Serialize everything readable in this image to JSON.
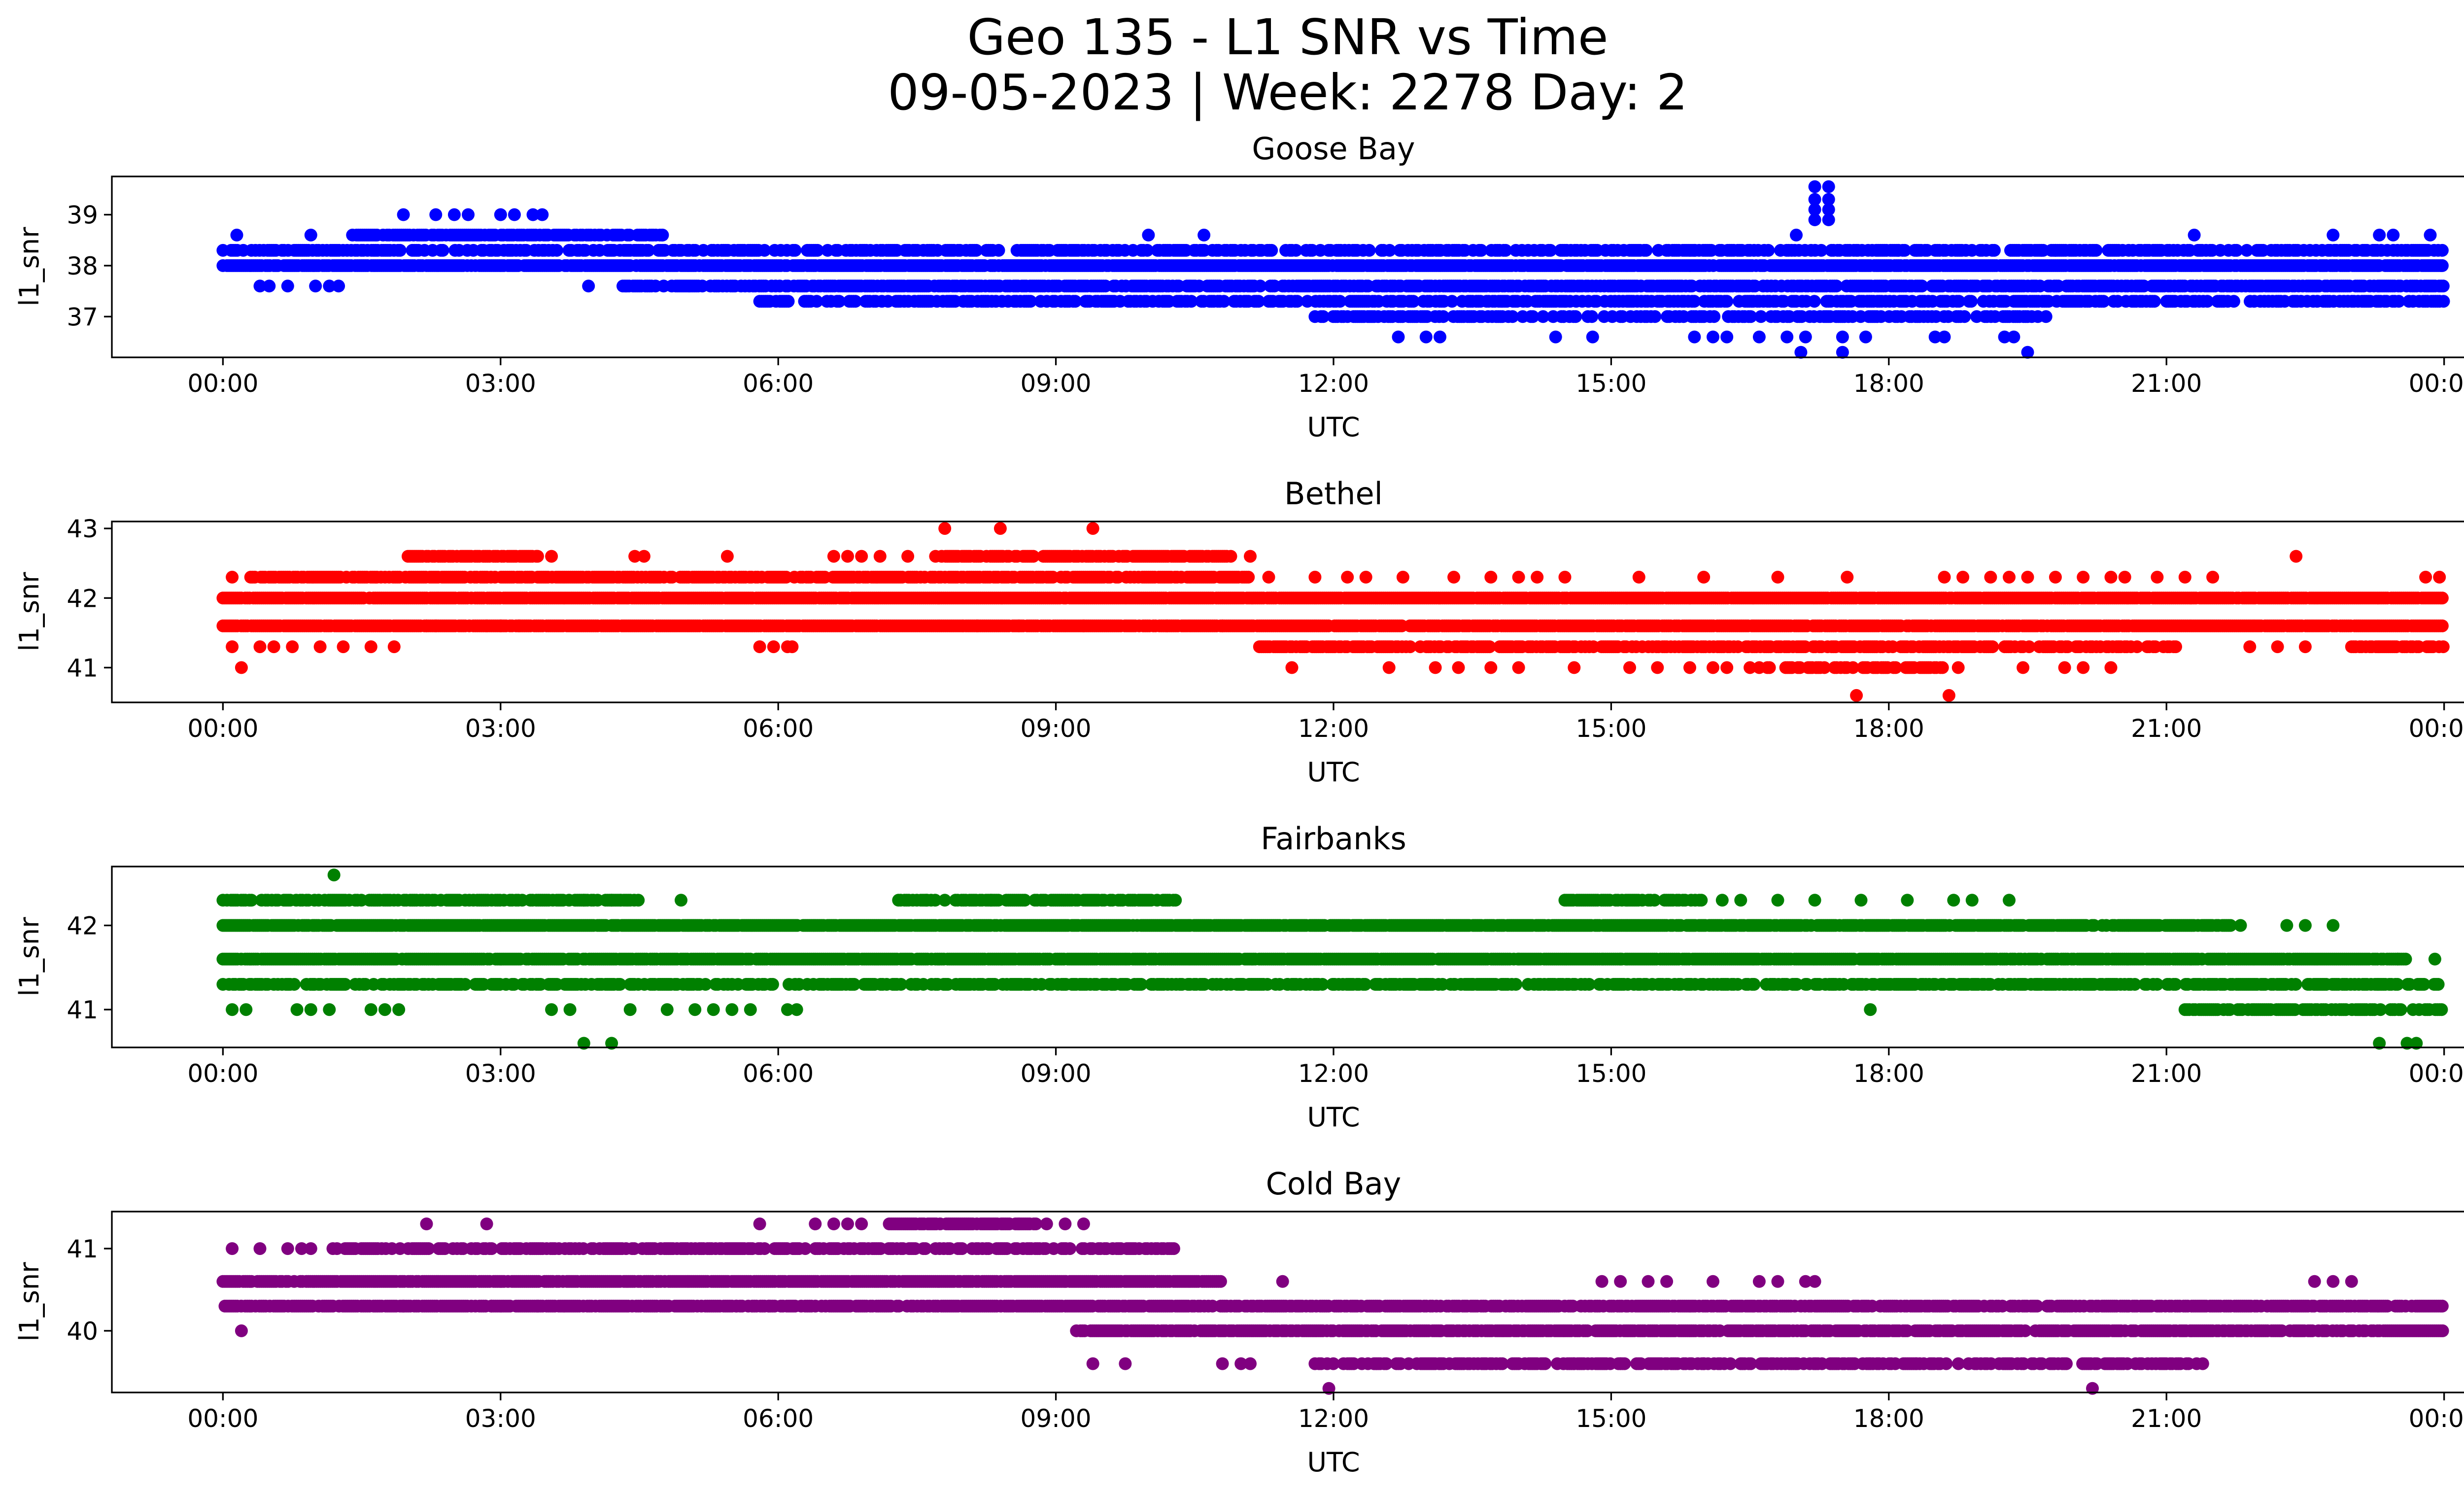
{
  "figure": {
    "title_line1": "Geo 135 - L1 SNR vs Time",
    "title_line2": "09-05-2023 | Week: 2278 Day: 2"
  },
  "chart_data": [
    {
      "type": "scatter",
      "title": "Goose Bay",
      "xlabel": "UTC",
      "ylabel": "l1_snr",
      "color": "#0000ff",
      "x_unit": "hours UTC (0-24)",
      "xticks": [
        "00:00",
        "03:00",
        "06:00",
        "09:00",
        "12:00",
        "15:00",
        "18:00",
        "21:00",
        "00:00"
      ],
      "xlim": [
        -1.2,
        25.2
      ],
      "ylim": [
        36.2,
        39.75
      ],
      "yticks": [
        37,
        38,
        39
      ],
      "bands": [
        {
          "y": 38.0,
          "from": 0.0,
          "to": 24.0,
          "density": 0.9
        },
        {
          "y": 38.3,
          "from": 0.0,
          "to": 24.0,
          "density": 0.55
        },
        {
          "y": 38.6,
          "from": 1.4,
          "to": 4.8,
          "density": 0.7
        },
        {
          "y": 37.6,
          "from": 4.3,
          "to": 24.0,
          "density": 0.7
        },
        {
          "y": 37.3,
          "from": 5.8,
          "to": 24.0,
          "density": 0.55
        },
        {
          "y": 37.0,
          "from": 11.8,
          "to": 19.7,
          "density": 0.5
        }
      ],
      "points": [
        [
          1.95,
          39.0
        ],
        [
          2.3,
          39.0
        ],
        [
          2.5,
          39.0
        ],
        [
          2.65,
          39.0
        ],
        [
          3.0,
          39.0
        ],
        [
          3.15,
          39.0
        ],
        [
          3.35,
          39.0
        ],
        [
          3.45,
          39.0
        ],
        [
          0.15,
          38.6
        ],
        [
          0.95,
          38.6
        ],
        [
          4.65,
          38.6
        ],
        [
          4.75,
          38.6
        ],
        [
          10.0,
          38.6
        ],
        [
          10.6,
          38.6
        ],
        [
          21.3,
          38.6
        ],
        [
          22.8,
          38.6
        ],
        [
          23.3,
          38.6
        ],
        [
          23.45,
          38.6
        ],
        [
          23.85,
          38.6
        ],
        [
          0.4,
          37.6
        ],
        [
          0.5,
          37.6
        ],
        [
          0.7,
          37.6
        ],
        [
          1.0,
          37.6
        ],
        [
          1.15,
          37.6
        ],
        [
          1.25,
          37.6
        ],
        [
          3.95,
          37.6
        ],
        [
          12.7,
          36.6
        ],
        [
          13.0,
          36.6
        ],
        [
          13.15,
          36.6
        ],
        [
          14.4,
          36.6
        ],
        [
          14.8,
          36.6
        ],
        [
          15.9,
          36.6
        ],
        [
          16.1,
          36.6
        ],
        [
          16.25,
          36.6
        ],
        [
          16.6,
          36.6
        ],
        [
          16.9,
          36.6
        ],
        [
          17.1,
          36.6
        ],
        [
          17.5,
          36.6
        ],
        [
          17.75,
          36.6
        ],
        [
          18.5,
          36.6
        ],
        [
          18.6,
          36.6
        ],
        [
          19.25,
          36.6
        ],
        [
          19.35,
          36.6
        ],
        [
          17.05,
          36.3
        ],
        [
          17.5,
          36.3
        ],
        [
          19.5,
          36.3
        ],
        [
          17.2,
          38.9
        ],
        [
          17.2,
          39.1
        ],
        [
          17.2,
          39.3
        ],
        [
          17.2,
          39.55
        ],
        [
          17.35,
          38.9
        ],
        [
          17.35,
          39.1
        ],
        [
          17.35,
          39.3
        ],
        [
          17.35,
          39.55
        ],
        [
          17.0,
          38.6
        ],
        [
          16.95,
          38.3
        ],
        [
          17.65,
          38.3
        ],
        [
          18.1,
          38.3
        ],
        [
          18.3,
          38.3
        ],
        [
          19.65,
          38.3
        ],
        [
          19.8,
          38.3
        ],
        [
          20.2,
          38.3
        ],
        [
          15.2,
          38.3
        ],
        [
          15.9,
          38.3
        ]
      ]
    },
    {
      "type": "scatter",
      "title": "Bethel",
      "xlabel": "UTC",
      "ylabel": "l1_snr",
      "color": "#ff0000",
      "x_unit": "hours UTC (0-24)",
      "xticks": [
        "00:00",
        "03:00",
        "06:00",
        "09:00",
        "12:00",
        "15:00",
        "18:00",
        "21:00",
        "00:00"
      ],
      "xlim": [
        -1.2,
        25.2
      ],
      "ylim": [
        40.5,
        43.1
      ],
      "yticks": [
        41,
        42,
        43
      ],
      "bands": [
        {
          "y": 42.0,
          "from": 0.0,
          "to": 24.0,
          "density": 0.95
        },
        {
          "y": 42.3,
          "from": 0.3,
          "to": 11.1,
          "density": 0.75
        },
        {
          "y": 41.6,
          "from": 0.0,
          "to": 24.0,
          "density": 0.9
        },
        {
          "y": 41.3,
          "from": 11.2,
          "to": 21.1,
          "density": 0.65
        },
        {
          "y": 42.6,
          "from": 2.0,
          "to": 3.4,
          "density": 0.8
        },
        {
          "y": 42.6,
          "from": 7.7,
          "to": 10.9,
          "density": 0.75
        },
        {
          "y": 41.3,
          "from": 23.0,
          "to": 24.0,
          "density": 0.6
        },
        {
          "y": 41.0,
          "from": 16.6,
          "to": 18.6,
          "density": 0.55
        }
      ],
      "points": [
        [
          0.1,
          42.3
        ],
        [
          0.1,
          41.3
        ],
        [
          0.2,
          41.0
        ],
        [
          0.4,
          41.3
        ],
        [
          0.55,
          41.3
        ],
        [
          0.75,
          41.3
        ],
        [
          1.05,
          41.3
        ],
        [
          1.3,
          41.3
        ],
        [
          1.6,
          41.3
        ],
        [
          1.85,
          41.3
        ],
        [
          2.2,
          41.6
        ],
        [
          2.3,
          41.6
        ],
        [
          2.85,
          41.6
        ],
        [
          3.0,
          41.6
        ],
        [
          3.2,
          41.6
        ],
        [
          3.4,
          42.6
        ],
        [
          3.55,
          42.6
        ],
        [
          4.45,
          42.6
        ],
        [
          4.55,
          42.6
        ],
        [
          5.45,
          42.6
        ],
        [
          6.6,
          42.6
        ],
        [
          6.75,
          42.6
        ],
        [
          6.9,
          42.6
        ],
        [
          7.1,
          42.6
        ],
        [
          7.4,
          42.6
        ],
        [
          7.8,
          43.0
        ],
        [
          8.4,
          43.0
        ],
        [
          9.4,
          43.0
        ],
        [
          5.8,
          41.3
        ],
        [
          5.95,
          41.3
        ],
        [
          6.1,
          41.3
        ],
        [
          6.15,
          41.3
        ],
        [
          8.0,
          41.6
        ],
        [
          8.15,
          41.6
        ],
        [
          8.6,
          41.6
        ],
        [
          9.3,
          41.6
        ],
        [
          10.2,
          41.6
        ],
        [
          10.8,
          41.6
        ],
        [
          11.1,
          42.6
        ],
        [
          11.3,
          42.3
        ],
        [
          11.8,
          42.3
        ],
        [
          12.15,
          42.3
        ],
        [
          12.35,
          42.3
        ],
        [
          12.75,
          42.3
        ],
        [
          13.3,
          42.3
        ],
        [
          13.7,
          42.3
        ],
        [
          14.0,
          42.3
        ],
        [
          14.2,
          42.3
        ],
        [
          14.5,
          42.3
        ],
        [
          15.3,
          42.3
        ],
        [
          16.0,
          42.3
        ],
        [
          16.8,
          42.3
        ],
        [
          11.55,
          41.0
        ],
        [
          12.6,
          41.0
        ],
        [
          13.1,
          41.0
        ],
        [
          13.35,
          41.0
        ],
        [
          13.7,
          41.0
        ],
        [
          14.0,
          41.0
        ],
        [
          14.6,
          41.0
        ],
        [
          15.2,
          41.0
        ],
        [
          15.5,
          41.0
        ],
        [
          15.85,
          41.0
        ],
        [
          16.1,
          41.0
        ],
        [
          16.25,
          41.0
        ],
        [
          16.5,
          41.0
        ],
        [
          17.65,
          40.6
        ],
        [
          18.65,
          40.6
        ],
        [
          18.75,
          41.0
        ],
        [
          19.45,
          41.0
        ],
        [
          19.9,
          41.0
        ],
        [
          20.1,
          41.0
        ],
        [
          20.4,
          41.0
        ],
        [
          17.55,
          42.3
        ],
        [
          18.6,
          42.3
        ],
        [
          18.8,
          42.3
        ],
        [
          19.1,
          42.3
        ],
        [
          19.3,
          42.3
        ],
        [
          19.5,
          42.3
        ],
        [
          19.8,
          42.3
        ],
        [
          20.1,
          42.3
        ],
        [
          20.4,
          42.3
        ],
        [
          20.55,
          42.3
        ],
        [
          20.9,
          42.3
        ],
        [
          21.2,
          42.3
        ],
        [
          21.5,
          42.3
        ],
        [
          22.4,
          42.6
        ],
        [
          23.8,
          42.3
        ],
        [
          23.95,
          42.3
        ],
        [
          21.9,
          41.3
        ],
        [
          22.2,
          41.3
        ],
        [
          22.5,
          41.3
        ]
      ]
    },
    {
      "type": "scatter",
      "title": "Fairbanks",
      "xlabel": "UTC",
      "ylabel": "l1_snr",
      "color": "#008000",
      "x_unit": "hours UTC (0-24)",
      "xticks": [
        "00:00",
        "03:00",
        "06:00",
        "09:00",
        "12:00",
        "15:00",
        "18:00",
        "21:00",
        "00:00"
      ],
      "xlim": [
        -1.2,
        25.2
      ],
      "ylim": [
        40.55,
        42.7
      ],
      "yticks": [
        41,
        42
      ],
      "bands": [
        {
          "y": 42.0,
          "from": 0.0,
          "to": 21.7,
          "density": 0.9
        },
        {
          "y": 41.6,
          "from": 0.0,
          "to": 23.6,
          "density": 0.92
        },
        {
          "y": 41.3,
          "from": 0.0,
          "to": 24.0,
          "density": 0.55
        },
        {
          "y": 42.3,
          "from": 0.0,
          "to": 4.5,
          "density": 0.6
        },
        {
          "y": 42.3,
          "from": 7.3,
          "to": 10.3,
          "density": 0.6
        },
        {
          "y": 42.3,
          "from": 14.5,
          "to": 16.0,
          "density": 0.7
        },
        {
          "y": 41.0,
          "from": 21.2,
          "to": 24.0,
          "density": 0.7
        }
      ],
      "points": [
        [
          1.2,
          42.6
        ],
        [
          0.1,
          41.0
        ],
        [
          0.25,
          41.0
        ],
        [
          0.8,
          41.0
        ],
        [
          0.95,
          41.0
        ],
        [
          1.15,
          41.0
        ],
        [
          1.6,
          41.0
        ],
        [
          1.75,
          41.0
        ],
        [
          1.9,
          41.0
        ],
        [
          3.55,
          41.0
        ],
        [
          3.75,
          41.0
        ],
        [
          3.9,
          40.6
        ],
        [
          4.2,
          40.6
        ],
        [
          4.4,
          41.0
        ],
        [
          4.8,
          41.0
        ],
        [
          5.1,
          41.0
        ],
        [
          5.3,
          41.0
        ],
        [
          5.5,
          41.0
        ],
        [
          5.7,
          41.0
        ],
        [
          6.1,
          41.0
        ],
        [
          6.2,
          41.0
        ],
        [
          4.95,
          42.3
        ],
        [
          3.9,
          42.3
        ],
        [
          4.2,
          42.3
        ],
        [
          4.3,
          42.3
        ],
        [
          7.6,
          42.3
        ],
        [
          7.8,
          42.3
        ],
        [
          8.3,
          42.3
        ],
        [
          9.6,
          41.3
        ],
        [
          9.85,
          41.3
        ],
        [
          10.3,
          41.3
        ],
        [
          11.0,
          41.3
        ],
        [
          11.5,
          41.3
        ],
        [
          12.0,
          41.3
        ],
        [
          12.5,
          41.3
        ],
        [
          13.0,
          41.3
        ],
        [
          13.3,
          41.3
        ],
        [
          13.5,
          41.3
        ],
        [
          14.0,
          41.6
        ],
        [
          14.9,
          41.6
        ],
        [
          15.1,
          41.6
        ],
        [
          16.2,
          42.3
        ],
        [
          16.4,
          42.3
        ],
        [
          16.8,
          42.3
        ],
        [
          17.2,
          42.3
        ],
        [
          17.7,
          42.3
        ],
        [
          18.2,
          42.3
        ],
        [
          18.7,
          42.3
        ],
        [
          18.9,
          42.3
        ],
        [
          19.3,
          42.3
        ],
        [
          17.0,
          41.3
        ],
        [
          17.1,
          41.3
        ],
        [
          17.4,
          41.3
        ],
        [
          17.6,
          41.3
        ],
        [
          17.8,
          41.0
        ],
        [
          18.4,
          41.3
        ],
        [
          18.5,
          41.3
        ],
        [
          19.4,
          41.3
        ],
        [
          19.6,
          41.3
        ],
        [
          19.7,
          41.3
        ],
        [
          21.8,
          42.0
        ],
        [
          22.3,
          42.0
        ],
        [
          22.5,
          42.0
        ],
        [
          22.8,
          42.0
        ],
        [
          23.3,
          40.6
        ],
        [
          23.6,
          40.6
        ],
        [
          23.7,
          40.6
        ],
        [
          23.5,
          41.6
        ],
        [
          23.9,
          41.6
        ]
      ]
    },
    {
      "type": "scatter",
      "title": "Cold Bay",
      "xlabel": "UTC",
      "ylabel": "l1_snr",
      "color": "#800080",
      "x_unit": "hours UTC (0-24)",
      "xticks": [
        "00:00",
        "03:00",
        "06:00",
        "09:00",
        "12:00",
        "15:00",
        "18:00",
        "21:00",
        "00:00"
      ],
      "xlim": [
        -1.2,
        25.2
      ],
      "ylim": [
        39.25,
        41.45
      ],
      "yticks": [
        40,
        41
      ],
      "bands": [
        {
          "y": 40.6,
          "from": 0.0,
          "to": 10.8,
          "density": 0.92
        },
        {
          "y": 40.3,
          "from": 0.0,
          "to": 24.0,
          "density": 0.75
        },
        {
          "y": 41.0,
          "from": 1.1,
          "to": 10.3,
          "density": 0.6
        },
        {
          "y": 41.3,
          "from": 7.2,
          "to": 8.8,
          "density": 0.8
        },
        {
          "y": 40.0,
          "from": 9.2,
          "to": 24.0,
          "density": 0.8
        },
        {
          "y": 39.6,
          "from": 11.8,
          "to": 21.4,
          "density": 0.55
        }
      ],
      "points": [
        [
          0.1,
          41.0
        ],
        [
          0.2,
          40.0
        ],
        [
          0.4,
          41.0
        ],
        [
          0.7,
          41.0
        ],
        [
          0.85,
          41.0
        ],
        [
          0.95,
          41.0
        ],
        [
          2.2,
          41.3
        ],
        [
          2.85,
          41.3
        ],
        [
          5.8,
          41.3
        ],
        [
          6.4,
          41.3
        ],
        [
          6.6,
          41.3
        ],
        [
          6.75,
          41.3
        ],
        [
          6.9,
          41.3
        ],
        [
          8.6,
          41.3
        ],
        [
          8.9,
          41.3
        ],
        [
          9.1,
          41.3
        ],
        [
          9.3,
          41.3
        ],
        [
          1.95,
          40.3
        ],
        [
          2.9,
          40.3
        ],
        [
          3.4,
          40.3
        ],
        [
          5.55,
          40.3
        ],
        [
          5.9,
          40.3
        ],
        [
          9.4,
          39.6
        ],
        [
          9.75,
          39.6
        ],
        [
          10.8,
          39.6
        ],
        [
          11.0,
          39.6
        ],
        [
          11.1,
          39.6
        ],
        [
          11.45,
          40.6
        ],
        [
          11.95,
          39.3
        ],
        [
          20.2,
          39.3
        ],
        [
          14.6,
          39.6
        ],
        [
          15.1,
          39.6
        ],
        [
          16.0,
          39.6
        ],
        [
          16.4,
          39.6
        ],
        [
          17.0,
          39.6
        ],
        [
          17.5,
          39.6
        ],
        [
          17.8,
          39.6
        ],
        [
          18.3,
          39.6
        ],
        [
          14.9,
          40.6
        ],
        [
          15.1,
          40.6
        ],
        [
          15.4,
          40.6
        ],
        [
          15.6,
          40.6
        ],
        [
          16.1,
          40.6
        ],
        [
          16.6,
          40.6
        ],
        [
          16.8,
          40.6
        ],
        [
          17.1,
          40.6
        ],
        [
          17.2,
          40.6
        ],
        [
          22.6,
          40.6
        ],
        [
          22.8,
          40.6
        ],
        [
          23.0,
          40.6
        ]
      ]
    }
  ]
}
